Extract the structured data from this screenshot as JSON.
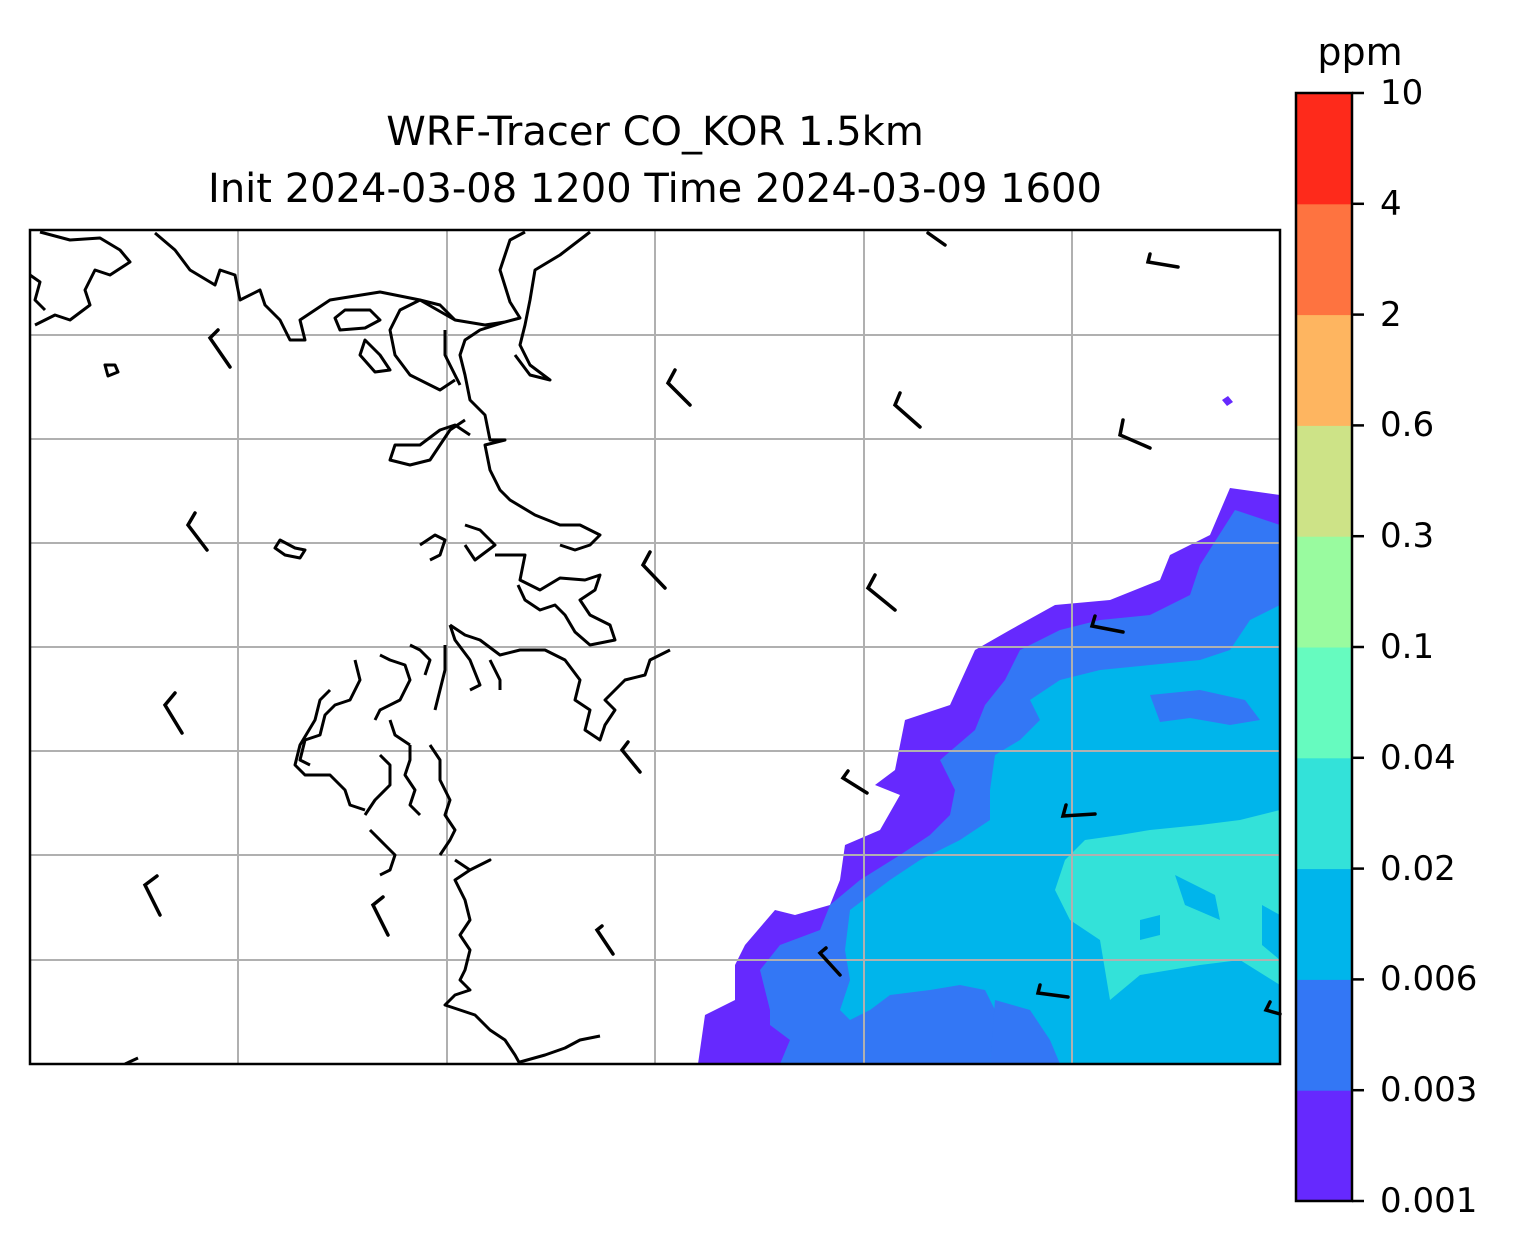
{
  "title": {
    "line1": "WRF-Tracer CO_KOR 1.5km",
    "line2": "Init 2024-03-08 1200 Time 2024-03-09 1600"
  },
  "colorbar": {
    "unit": "ppm",
    "levels": [
      "0.001",
      "0.003",
      "0.006",
      "0.02",
      "0.04",
      "0.1",
      "0.3",
      "0.6",
      "2",
      "4",
      "10"
    ],
    "colors": [
      "#6629fe",
      "#3377f5",
      "#00b5eb",
      "#33e2d9",
      "#66fbbf",
      "#99fb9f",
      "#cde387",
      "#feb560",
      "#fe7340",
      "#fe2a1b"
    ]
  },
  "map": {
    "gridlines": true,
    "grid_color": "#b0b0b0",
    "coastline_color": "#000000",
    "features": [
      "coastline",
      "wind-barbs",
      "co-concentration-contours"
    ]
  }
}
